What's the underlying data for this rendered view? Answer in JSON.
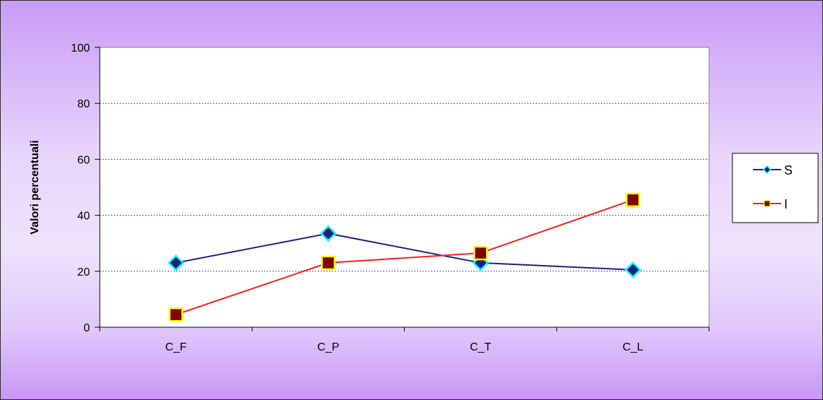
{
  "chart_data": {
    "type": "line",
    "title": "",
    "xlabel": "",
    "ylabel": "Valori percentuali",
    "categories": [
      "C_F",
      "C_P",
      "C_T",
      "C_L"
    ],
    "ylim": [
      0,
      100
    ],
    "yticks": [
      "0",
      "20",
      "40",
      "60",
      "80",
      "100"
    ],
    "grid": true,
    "legend_position": "right",
    "series": [
      {
        "name": "S",
        "values": [
          23,
          33.5,
          23,
          20.5
        ],
        "line_color": "#1f1f7a",
        "marker": "diamond",
        "marker_fill": "#1f1f7a",
        "marker_edge": "#00ffff"
      },
      {
        "name": "I",
        "values": [
          4.5,
          23,
          26.5,
          45.5
        ],
        "line_color": "#ff1a1a",
        "marker": "square",
        "marker_fill": "#800000",
        "marker_edge": "#ffff00"
      }
    ]
  }
}
